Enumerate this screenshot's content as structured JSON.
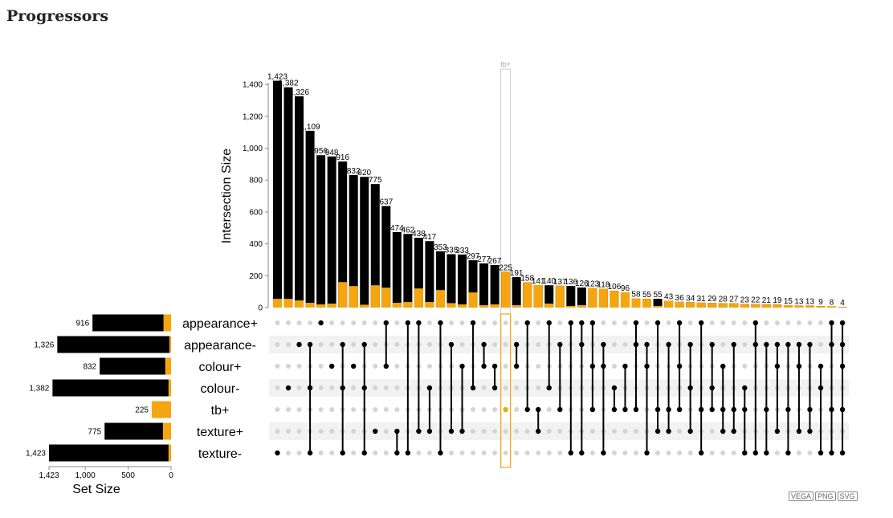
{
  "page": {
    "title": "Progressors"
  },
  "export_buttons": [
    "VEGA",
    "PNG",
    "SVG"
  ],
  "colors": {
    "bar": "#000000",
    "highlight": "#f5a510",
    "dot_off": "#d4d4d4",
    "row_stripe": "#f2f2f2",
    "highlight_frame": "#f5a510",
    "selection_frame": "#cccccc"
  },
  "chart_data": {
    "type": "upset",
    "ylabel": "Intersection Size",
    "set_axis_label": "Set Size",
    "yticks": [
      0,
      200,
      400,
      600,
      800,
      1000,
      1200,
      1400
    ],
    "yticklabels": [
      "0",
      "200",
      "400",
      "600",
      "800",
      "1,000",
      "1,200",
      "1,400"
    ],
    "set_ticks": [
      1423,
      1000,
      500,
      0
    ],
    "set_ticklabels": [
      "1,423",
      "1,000",
      "500",
      "0"
    ],
    "selected_set": "tb+",
    "sets": [
      {
        "name": "appearance+",
        "size": 916,
        "size_label": "916",
        "tb_plus": 88
      },
      {
        "name": "appearance-",
        "size": 1326,
        "size_label": "1,326",
        "tb_plus": 20
      },
      {
        "name": "colour+",
        "size": 832,
        "size_label": "832",
        "tb_plus": 68
      },
      {
        "name": "colour-",
        "size": 1382,
        "size_label": "1,382",
        "tb_plus": 30
      },
      {
        "name": "tb+",
        "size": 225,
        "size_label": "225",
        "tb_plus": 225
      },
      {
        "name": "texture+",
        "size": 775,
        "size_label": "775",
        "tb_plus": 95
      },
      {
        "name": "texture-",
        "size": 1423,
        "size_label": "1,423",
        "tb_plus": 30
      }
    ],
    "intersections": [
      {
        "value": 1423,
        "label": "1,423",
        "tb_plus": 55,
        "sets": [
          6
        ]
      },
      {
        "value": 1382,
        "label": "1,382",
        "tb_plus": 55,
        "sets": [
          3
        ]
      },
      {
        "value": 1326,
        "label": "1,326",
        "tb_plus": 45,
        "sets": [
          1
        ]
      },
      {
        "value": 1109,
        "label": "1,109",
        "tb_plus": 30,
        "sets": [
          1,
          3,
          6
        ]
      },
      {
        "value": 956,
        "label": "956",
        "tb_plus": 20,
        "sets": [
          0
        ]
      },
      {
        "value": 948,
        "label": "948",
        "tb_plus": 25,
        "sets": [
          2
        ]
      },
      {
        "value": 916,
        "label": "916",
        "tb_plus": 160,
        "sets": [
          1,
          3,
          6
        ]
      },
      {
        "value": 832,
        "label": "832",
        "tb_plus": 135,
        "sets": [
          2
        ]
      },
      {
        "value": 820,
        "label": "820",
        "tb_plus": 18,
        "sets": [
          1,
          3,
          6
        ]
      },
      {
        "value": 775,
        "label": "775",
        "tb_plus": 140,
        "sets": [
          5
        ]
      },
      {
        "value": 637,
        "label": "637",
        "tb_plus": 125,
        "sets": [
          0,
          2
        ]
      },
      {
        "value": 474,
        "label": "474",
        "tb_plus": 30,
        "sets": [
          5,
          6
        ]
      },
      {
        "value": 462,
        "label": "462",
        "tb_plus": 35,
        "sets": [
          0,
          6
        ]
      },
      {
        "value": 438,
        "label": "438",
        "tb_plus": 120,
        "sets": [
          0,
          5
        ]
      },
      {
        "value": 417,
        "label": "417",
        "tb_plus": 35,
        "sets": [
          3,
          5
        ]
      },
      {
        "value": 353,
        "label": "353",
        "tb_plus": 110,
        "sets": [
          0,
          6
        ]
      },
      {
        "value": 335,
        "label": "335",
        "tb_plus": 28,
        "sets": [
          1,
          5
        ]
      },
      {
        "value": 333,
        "label": "333",
        "tb_plus": 20,
        "sets": [
          2,
          5
        ]
      },
      {
        "value": 297,
        "label": "297",
        "tb_plus": 95,
        "sets": [
          0,
          3
        ]
      },
      {
        "value": 277,
        "label": "277",
        "tb_plus": 15,
        "sets": [
          1,
          2
        ]
      },
      {
        "value": 267,
        "label": "267",
        "tb_plus": 20,
        "sets": [
          2,
          3
        ]
      },
      {
        "value": 225,
        "label": "225",
        "tb_plus": 225,
        "sets": [
          4
        ]
      },
      {
        "value": 191,
        "label": "191",
        "tb_plus": 15,
        "sets": [
          1,
          2
        ]
      },
      {
        "value": 158,
        "label": "158",
        "tb_plus": 158,
        "sets": [
          0,
          4
        ]
      },
      {
        "value": 141,
        "label": "141",
        "tb_plus": 141,
        "sets": [
          4,
          5
        ]
      },
      {
        "value": 140,
        "label": "140",
        "tb_plus": 25,
        "sets": [
          0,
          3
        ]
      },
      {
        "value": 137,
        "label": "137",
        "tb_plus": 137,
        "sets": [
          1,
          4
        ]
      },
      {
        "value": 136,
        "label": "136",
        "tb_plus": 10,
        "sets": [
          0,
          6
        ]
      },
      {
        "value": 126,
        "label": "126",
        "tb_plus": 15,
        "sets": [
          0,
          1,
          6
        ]
      },
      {
        "value": 123,
        "label": "123",
        "tb_plus": 123,
        "sets": [
          0,
          2,
          4
        ]
      },
      {
        "value": 118,
        "label": "118",
        "tb_plus": 118,
        "sets": [
          1,
          2,
          6
        ]
      },
      {
        "value": 106,
        "label": "106",
        "tb_plus": 106,
        "sets": [
          3,
          4
        ]
      },
      {
        "value": 96,
        "label": "96",
        "tb_plus": 96,
        "sets": [
          2,
          4
        ]
      },
      {
        "value": 58,
        "label": "58",
        "tb_plus": 58,
        "sets": [
          0,
          1,
          4
        ]
      },
      {
        "value": 55,
        "label": "55",
        "tb_plus": 55,
        "sets": [
          1,
          2,
          6
        ]
      },
      {
        "value": 55,
        "label": "55",
        "tb_plus": 10,
        "sets": [
          0,
          4,
          5
        ]
      },
      {
        "value": 43,
        "label": "43",
        "tb_plus": 43,
        "sets": [
          1,
          4,
          5
        ]
      },
      {
        "value": 36,
        "label": "36",
        "tb_plus": 36,
        "sets": [
          0,
          2,
          4
        ]
      },
      {
        "value": 34,
        "label": "34",
        "tb_plus": 34,
        "sets": [
          1,
          3,
          5
        ]
      },
      {
        "value": 31,
        "label": "31",
        "tb_plus": 31,
        "sets": [
          0,
          4,
          6
        ]
      },
      {
        "value": 29,
        "label": "29",
        "tb_plus": 29,
        "sets": [
          1,
          3,
          4
        ]
      },
      {
        "value": 28,
        "label": "28",
        "tb_plus": 28,
        "sets": [
          2,
          4,
          5
        ]
      },
      {
        "value": 27,
        "label": "27",
        "tb_plus": 27,
        "sets": [
          1,
          4,
          5
        ]
      },
      {
        "value": 23,
        "label": "23",
        "tb_plus": 23,
        "sets": [
          3,
          4,
          6
        ]
      },
      {
        "value": 22,
        "label": "22",
        "tb_plus": 22,
        "sets": [
          0,
          1,
          6
        ]
      },
      {
        "value": 21,
        "label": "21",
        "tb_plus": 21,
        "sets": [
          1,
          4,
          6
        ]
      },
      {
        "value": 19,
        "label": "19",
        "tb_plus": 19,
        "sets": [
          1,
          2,
          5
        ]
      },
      {
        "value": 15,
        "label": "15",
        "tb_plus": 15,
        "sets": [
          1,
          4,
          6
        ]
      },
      {
        "value": 13,
        "label": "13",
        "tb_plus": 13,
        "sets": [
          1,
          2,
          5
        ]
      },
      {
        "value": 13,
        "label": "13",
        "tb_plus": 13,
        "sets": [
          1,
          4,
          5
        ]
      },
      {
        "value": 9,
        "label": "9",
        "tb_plus": 9,
        "sets": [
          2,
          3,
          6
        ]
      },
      {
        "value": 8,
        "label": "8",
        "tb_plus": 8,
        "sets": [
          0,
          1,
          4,
          6
        ]
      },
      {
        "value": 4,
        "label": "4",
        "tb_plus": 4,
        "sets": [
          0,
          1,
          2,
          4,
          6
        ]
      }
    ]
  }
}
